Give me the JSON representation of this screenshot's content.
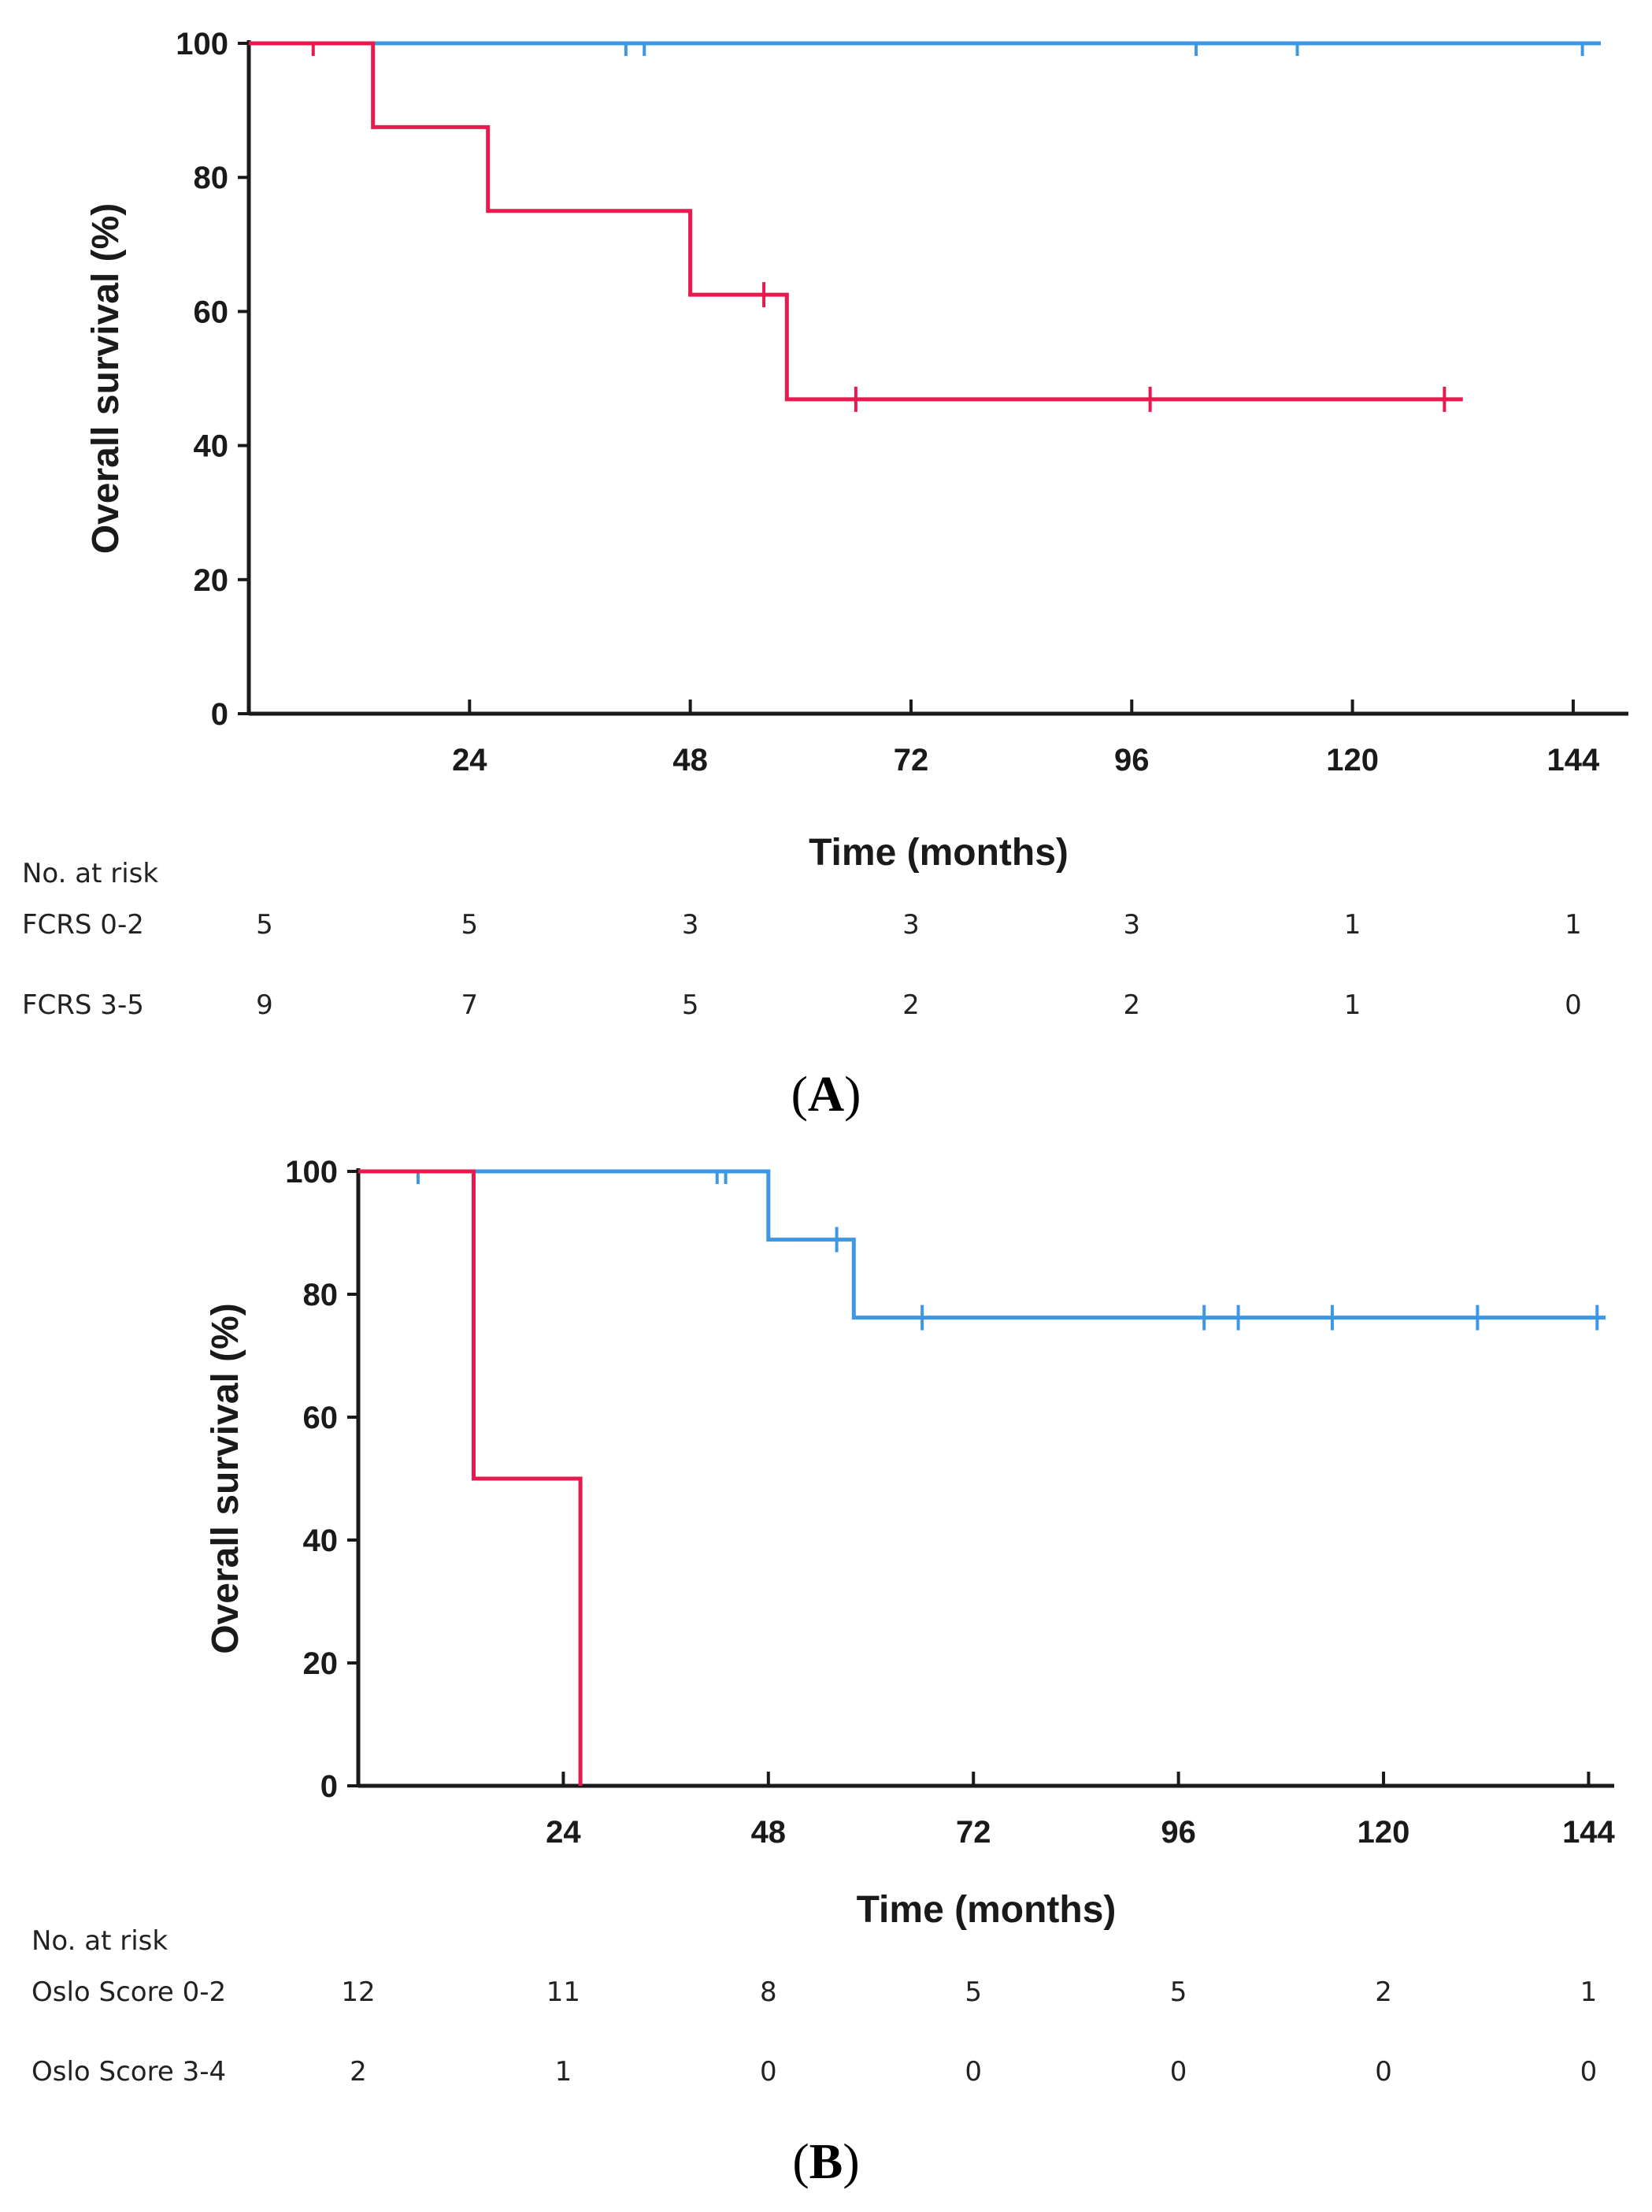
{
  "colors": {
    "series_1": "#3d97e5",
    "series_2": "#e8194d",
    "axis": "#1a1a1a"
  },
  "chart_data": [
    {
      "type": "line",
      "panel_label": "A",
      "xlabel": "Time (months)",
      "ylabel": "Overall survival (%)",
      "xlim": [
        0,
        150
      ],
      "ylim": [
        0,
        100
      ],
      "x_ticks": [
        24,
        48,
        72,
        96,
        120,
        144
      ],
      "x_tick_labels": [
        "24",
        "48",
        "72",
        "96",
        "120",
        "144"
      ],
      "y_ticks": [
        0,
        20,
        40,
        60,
        80,
        100
      ],
      "y_tick_labels": [
        "0",
        "20",
        "40",
        "60",
        "80",
        "100"
      ],
      "series": [
        {
          "name": "FCRS 0-2",
          "color": "#3d97e5",
          "steps": [
            [
              0,
              100
            ],
            [
              147,
              100
            ]
          ],
          "censored": [
            [
              41,
              100
            ],
            [
              43,
              100
            ],
            [
              103,
              100
            ],
            [
              114,
              100
            ],
            [
              145,
              100
            ]
          ]
        },
        {
          "name": "FCRS 3-5",
          "color": "#e8194d",
          "steps": [
            [
              0,
              100
            ],
            [
              13.5,
              100
            ],
            [
              13.5,
              87.5
            ],
            [
              26,
              87.5
            ],
            [
              26,
              75
            ],
            [
              48,
              75
            ],
            [
              48,
              62.5
            ],
            [
              58.5,
              62.5
            ],
            [
              58.5,
              46.9
            ],
            [
              132,
              46.9
            ]
          ],
          "censored": [
            [
              7,
              100
            ],
            [
              56,
              62.5
            ],
            [
              66,
              46.9
            ],
            [
              98,
              46.9
            ],
            [
              130,
              46.9
            ]
          ]
        }
      ],
      "risk_table": {
        "title": "No. at risk",
        "times": [
          0,
          24,
          48,
          72,
          96,
          120,
          144
        ],
        "rows": [
          {
            "label": "FCRS 0-2",
            "values": [
              "5",
              "5",
              "3",
              "3",
              "3",
              "1",
              "1"
            ]
          },
          {
            "label": "FCRS 3-5",
            "values": [
              "9",
              "7",
              "5",
              "2",
              "2",
              "1",
              "0"
            ]
          }
        ]
      }
    },
    {
      "type": "line",
      "panel_label": "B",
      "xlabel": "Time (months)",
      "ylabel": "Overall survival (%)",
      "xlim": [
        0,
        147
      ],
      "ylim": [
        0,
        100
      ],
      "x_ticks": [
        24,
        48,
        72,
        96,
        120,
        144
      ],
      "x_tick_labels": [
        "24",
        "48",
        "72",
        "96",
        "120",
        "144"
      ],
      "y_ticks": [
        0,
        20,
        40,
        60,
        80,
        100
      ],
      "y_tick_labels": [
        "0",
        "20",
        "40",
        "60",
        "80",
        "100"
      ],
      "series": [
        {
          "name": "Oslo Score 0-2",
          "color": "#3d97e5",
          "steps": [
            [
              0,
              100
            ],
            [
              48,
              100
            ],
            [
              48,
              88.9
            ],
            [
              58,
              88.9
            ],
            [
              58,
              76.2
            ],
            [
              146,
              76.2
            ]
          ],
          "censored": [
            [
              7,
              100
            ],
            [
              42,
              100
            ],
            [
              43,
              100
            ],
            [
              56,
              88.9
            ],
            [
              66,
              76.2
            ],
            [
              99,
              76.2
            ],
            [
              103,
              76.2
            ],
            [
              114,
              76.2
            ],
            [
              131,
              76.2
            ],
            [
              145,
              76.2
            ]
          ]
        },
        {
          "name": "Oslo Score 3-4",
          "color": "#e8194d",
          "steps": [
            [
              0,
              100
            ],
            [
              13.5,
              100
            ],
            [
              13.5,
              50
            ],
            [
              26,
              50
            ],
            [
              26,
              0
            ]
          ],
          "censored": []
        }
      ],
      "risk_table": {
        "title": "No. at risk",
        "times": [
          0,
          24,
          48,
          72,
          96,
          120,
          144
        ],
        "rows": [
          {
            "label": "Oslo Score 0-2",
            "values": [
              "12",
              "11",
              "8",
              "5",
              "5",
              "2",
              "1"
            ]
          },
          {
            "label": "Oslo Score 3-4",
            "values": [
              "2",
              "1",
              "0",
              "0",
              "0",
              "0",
              "0"
            ]
          }
        ]
      }
    }
  ]
}
